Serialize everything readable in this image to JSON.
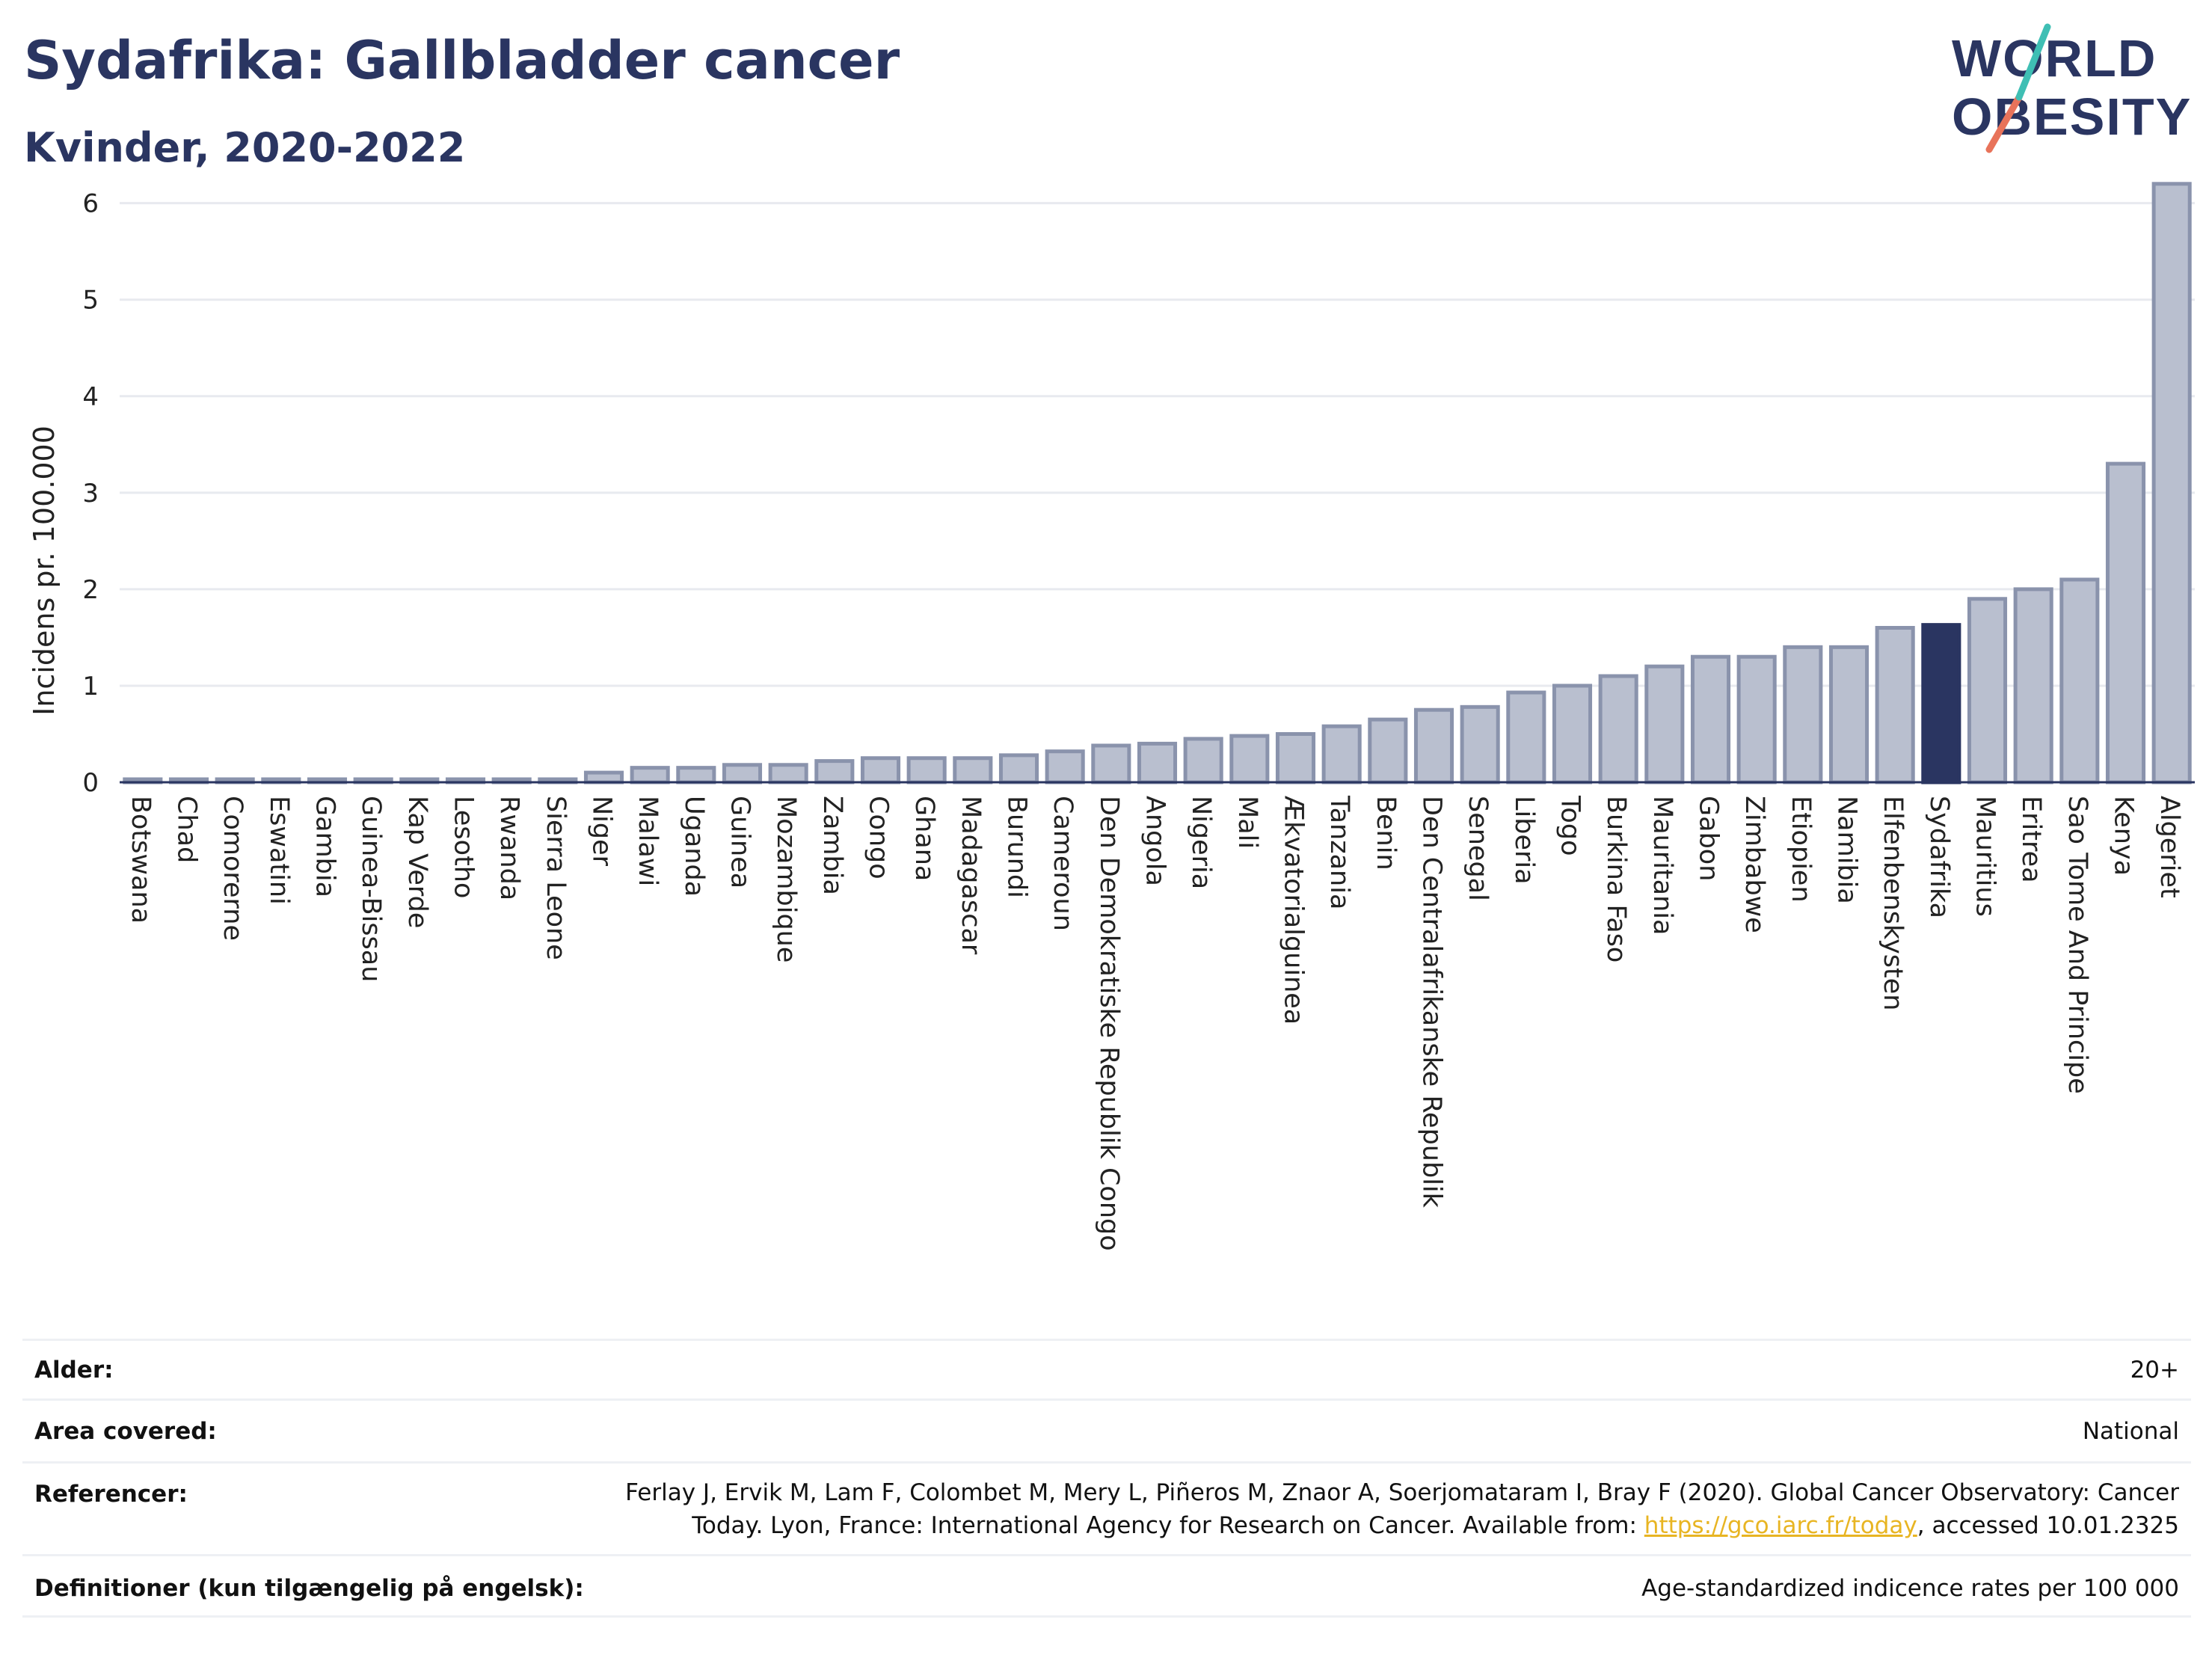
{
  "header": {
    "title": "Sydafrika: Gallbladder cancer",
    "subtitle": "Kvinder, 2020-2022"
  },
  "logo": {
    "line1": "WORLD",
    "line2": "OBESITY"
  },
  "colors": {
    "bar": "#b9bfcf",
    "bar_stroke": "#8a93ac",
    "highlight": "#2a3561",
    "title": "#2a3561",
    "grid": "#e8eaef",
    "link": "#e8b523"
  },
  "chart_data": {
    "type": "bar",
    "ylabel": "Incidens pr. 100.000",
    "ylim": [
      0,
      6.4
    ],
    "yticks": [
      "0",
      "1",
      "2",
      "3",
      "4",
      "5",
      "6"
    ],
    "grid": true,
    "highlight": "Sydafrika",
    "categories": [
      "Botswana",
      "Chad",
      "Comorerne",
      "Eswatini",
      "Gambia",
      "Guinea-Bissau",
      "Kap Verde",
      "Lesotho",
      "Rwanda",
      "Sierra Leone",
      "Niger",
      "Malawi",
      "Uganda",
      "Guinea",
      "Mozambique",
      "Zambia",
      "Congo",
      "Ghana",
      "Madagascar",
      "Burundi",
      "Cameroun",
      "Den Demokratiske Republik Congo",
      "Angola",
      "Nigeria",
      "Mali",
      "Ækvatorialguinea",
      "Tanzania",
      "Benin",
      "Den Centralafrikanske Republik",
      "Senegal",
      "Liberia",
      "Togo",
      "Burkina Faso",
      "Mauritania",
      "Gabon",
      "Zimbabwe",
      "Etiopien",
      "Namibia",
      "Elfenbenskysten",
      "Sydafrika",
      "Mauritius",
      "Eritrea",
      "Sao Tome And Principe",
      "Kenya",
      "Algeriet"
    ],
    "values": [
      0.02,
      0.02,
      0.02,
      0.02,
      0.02,
      0.02,
      0.02,
      0.02,
      0.02,
      0.02,
      0.1,
      0.15,
      0.15,
      0.18,
      0.18,
      0.22,
      0.25,
      0.25,
      0.25,
      0.28,
      0.32,
      0.38,
      0.4,
      0.45,
      0.48,
      0.5,
      0.58,
      0.65,
      0.75,
      0.78,
      0.93,
      1.0,
      1.1,
      1.2,
      1.3,
      1.3,
      1.4,
      1.4,
      1.6,
      1.63,
      1.9,
      2.0,
      2.1,
      3.3,
      6.2
    ]
  },
  "meta": {
    "age_label": "Alder:",
    "age_value": "20+",
    "area_label": "Area covered:",
    "area_value": "National",
    "ref_label": "Referencer:",
    "ref_line1": "Ferlay J, Ervik M, Lam F, Colombet M, Mery L, Piñeros M, Znaor A, Soerjomataram I, Bray F (2020). Global Cancer Observatory: Cancer",
    "ref_line2_pre": "Today. Lyon, France: International Agency for Research on Cancer. Available from: ",
    "ref_link": "https://gco.iarc.fr/today",
    "ref_line2_post": ", accessed 10.01.2325",
    "def_label": "Definitioner (kun tilgængelig på engelsk):",
    "def_value": "Age-standardized indicence rates per 100 000"
  }
}
